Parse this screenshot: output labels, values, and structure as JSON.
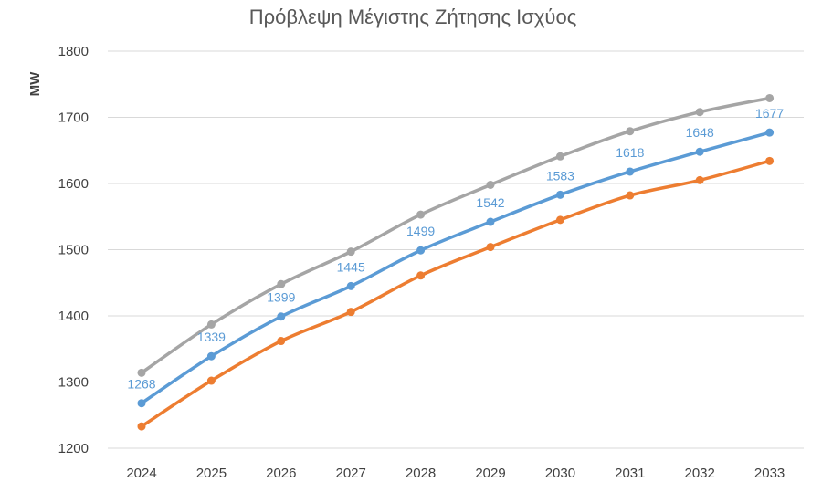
{
  "chart_data": {
    "type": "line",
    "title": "Πρόβλεψη Μέγιστης Ζήτησης Ισχύος",
    "xlabel": "",
    "ylabel": "MW",
    "ylim": [
      1200,
      1800
    ],
    "ytick_step": 100,
    "grid": true,
    "x": [
      "2024",
      "2025",
      "2026",
      "2027",
      "2028",
      "2029",
      "2030",
      "2031",
      "2032",
      "2033"
    ],
    "series": [
      {
        "color": "#a5a5a5",
        "values": [
          1314,
          1387,
          1448,
          1497,
          1553,
          1598,
          1641,
          1679,
          1708,
          1729
        ]
      },
      {
        "color": "#5b9bd5",
        "values": [
          1268,
          1339,
          1399,
          1445,
          1499,
          1542,
          1583,
          1618,
          1648,
          1677
        ],
        "data_labels": [
          "1268",
          "1339",
          "1399",
          "1445",
          "1499",
          "1542",
          "1583",
          "1618",
          "1648",
          "1677"
        ]
      },
      {
        "color": "#ed7d31",
        "values": [
          1233,
          1302,
          1362,
          1406,
          1461,
          1504,
          1545,
          1582,
          1605,
          1634
        ]
      }
    ]
  }
}
